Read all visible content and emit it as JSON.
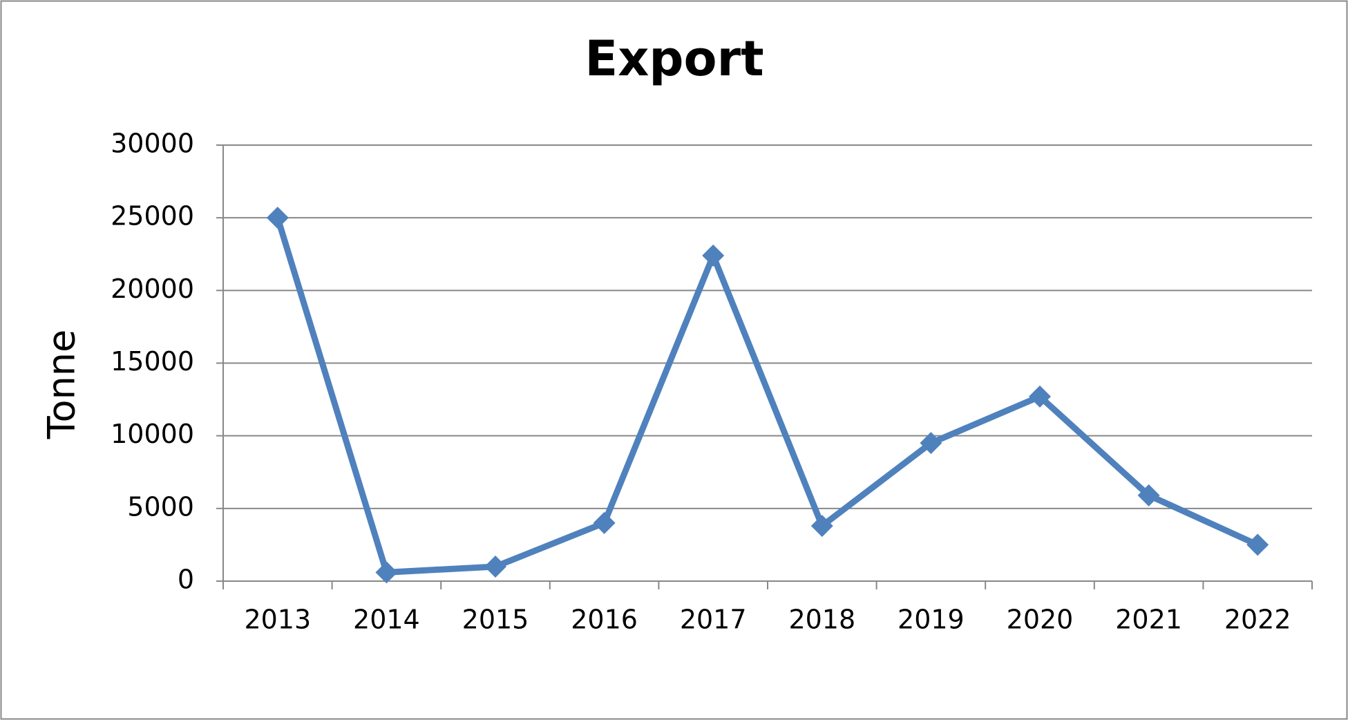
{
  "chart_data": {
    "type": "line",
    "title": "Export",
    "y_label": "Tonne",
    "categories": [
      "2013",
      "2014",
      "2015",
      "2016",
      "2017",
      "2018",
      "2019",
      "2020",
      "2021",
      "2022"
    ],
    "series": [
      {
        "name": "Export",
        "color": "#4f81bd",
        "values": [
          25000,
          600,
          1000,
          4000,
          22400,
          3800,
          9500,
          12700,
          5900,
          2500
        ]
      }
    ],
    "ylim": [
      0,
      30000
    ],
    "yticks": [
      0,
      5000,
      10000,
      15000,
      20000,
      25000,
      30000
    ],
    "grid": true,
    "title_color": "#ff0000"
  }
}
